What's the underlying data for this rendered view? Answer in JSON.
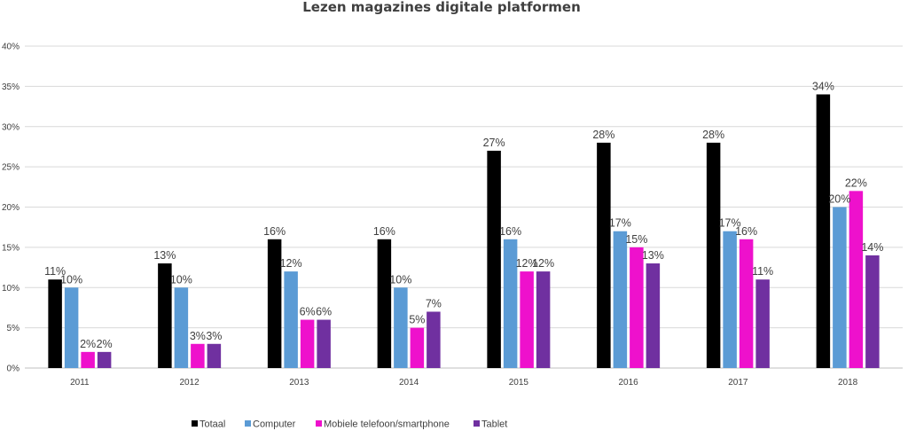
{
  "chart_data": {
    "type": "bar",
    "title": "Lezen magazines digitale platformen",
    "xlabel": "",
    "ylabel": "",
    "categories": [
      "2011",
      "2012",
      "2013",
      "2014",
      "2015",
      "2016",
      "2017",
      "2018"
    ],
    "ylim": [
      0,
      40
    ],
    "yticks": [
      0,
      5,
      10,
      15,
      20,
      25,
      30,
      35,
      40
    ],
    "ytick_labels": [
      "0%",
      "5%",
      "10%",
      "15%",
      "20%",
      "25%",
      "30%",
      "35%",
      "40%"
    ],
    "value_suffix": "%",
    "grid": true,
    "legend_position": "bottom",
    "series": [
      {
        "name": "Totaal",
        "color": "#000000",
        "values": [
          11,
          13,
          16,
          16,
          27,
          28,
          28,
          34
        ]
      },
      {
        "name": "Computer",
        "color": "#5B9BD5",
        "values": [
          10,
          10,
          12,
          10,
          16,
          17,
          17,
          20
        ]
      },
      {
        "name": "Mobiele telefoon/smartphone",
        "color": "#EE11CC",
        "values": [
          2,
          3,
          6,
          5,
          12,
          15,
          16,
          22
        ]
      },
      {
        "name": "Tablet",
        "color": "#7030A0",
        "values": [
          2,
          3,
          6,
          7,
          12,
          13,
          11,
          14
        ]
      }
    ]
  }
}
